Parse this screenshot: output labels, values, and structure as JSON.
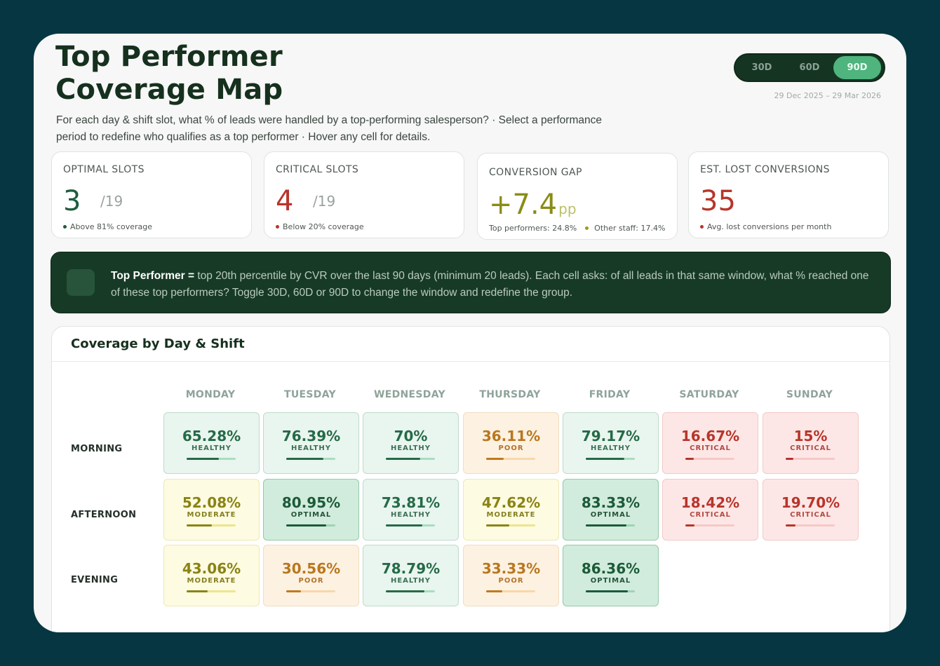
{
  "header": {
    "title_line1": "Top Performer",
    "title_line2": "Coverage Map",
    "subtitle_line1": "For each day & shift slot, what % of leads were handled by a top-performing salesperson? · Select a performance",
    "subtitle_line2": "period to redefine who qualifies as a top performer · Hover any cell for details.",
    "date_range": "29 Dec 2025 – 29 Mar 2026"
  },
  "period_toggle": {
    "options": [
      "30D",
      "60D",
      "90D"
    ],
    "selected": "90D"
  },
  "kpis": {
    "optimal": {
      "label": "OPTIMAL SLOTS",
      "value": "3",
      "denom": "/19",
      "note": "Above 81% coverage",
      "color": "#1f5c3d",
      "dot": "#1f5c3d"
    },
    "critical": {
      "label": "CRITICAL SLOTS",
      "value": "4",
      "denom": "/19",
      "note": "Below 20% coverage",
      "color": "#b7352b",
      "dot": "#b7352b"
    },
    "gap": {
      "label": "CONVERSION GAP",
      "value": "+7.4",
      "unit": "pp",
      "top_label": "Top performers:",
      "top_value": "24.8%",
      "other_label": "Other staff:",
      "other_value": "17.4%",
      "dot": "#a39a1a"
    },
    "lost": {
      "label": "EST. LOST CONVERSIONS",
      "value": "35",
      "note": "Avg. lost conversions per month",
      "color": "#b7352b",
      "dot": "#b7352b"
    }
  },
  "banner": {
    "bold": "Top Performer =",
    "text": " top 20th percentile by CVR over the last 90 days (minimum 20 leads). Each cell asks: of all leads in that same window, what % reached one of these top performers? Toggle 30D, 60D or 90D to change the window and redefine the group."
  },
  "heatmap": {
    "title": "Coverage by Day & Shift",
    "days": [
      "MONDAY",
      "TUESDAY",
      "WEDNESDAY",
      "THURSDAY",
      "FRIDAY",
      "SATURDAY",
      "SUNDAY"
    ],
    "shifts": [
      "MORNING",
      "AFTERNOON",
      "EVENING"
    ],
    "rows": [
      [
        {
          "value": "65.28%",
          "pct": 65.28,
          "status": "HEALTHY",
          "cls": "healthy"
        },
        {
          "value": "76.39%",
          "pct": 76.39,
          "status": "HEALTHY",
          "cls": "healthy"
        },
        {
          "value": "70%",
          "pct": 70,
          "status": "HEALTHY",
          "cls": "healthy"
        },
        {
          "value": "36.11%",
          "pct": 36.11,
          "status": "POOR",
          "cls": "poor"
        },
        {
          "value": "79.17%",
          "pct": 79.17,
          "status": "HEALTHY",
          "cls": "healthy"
        },
        {
          "value": "16.67%",
          "pct": 16.67,
          "status": "CRITICAL",
          "cls": "critical"
        },
        {
          "value": "15%",
          "pct": 15,
          "status": "CRITICAL",
          "cls": "critical"
        }
      ],
      [
        {
          "value": "52.08%",
          "pct": 52.08,
          "status": "MODERATE",
          "cls": "moderate"
        },
        {
          "value": "80.95%",
          "pct": 80.95,
          "status": "OPTIMAL",
          "cls": "optimal"
        },
        {
          "value": "73.81%",
          "pct": 73.81,
          "status": "HEALTHY",
          "cls": "healthy"
        },
        {
          "value": "47.62%",
          "pct": 47.62,
          "status": "MODERATE",
          "cls": "moderate"
        },
        {
          "value": "83.33%",
          "pct": 83.33,
          "status": "OPTIMAL",
          "cls": "optimal"
        },
        {
          "value": "18.42%",
          "pct": 18.42,
          "status": "CRITICAL",
          "cls": "critical"
        },
        {
          "value": "19.70%",
          "pct": 19.7,
          "status": "CRITICAL",
          "cls": "critical"
        }
      ],
      [
        {
          "value": "43.06%",
          "pct": 43.06,
          "status": "MODERATE",
          "cls": "moderate"
        },
        {
          "value": "30.56%",
          "pct": 30.56,
          "status": "POOR",
          "cls": "poor"
        },
        {
          "value": "78.79%",
          "pct": 78.79,
          "status": "HEALTHY",
          "cls": "healthy"
        },
        {
          "value": "33.33%",
          "pct": 33.33,
          "status": "POOR",
          "cls": "poor"
        },
        {
          "value": "86.36%",
          "pct": 86.36,
          "status": "OPTIMAL",
          "cls": "optimal"
        },
        null,
        null
      ]
    ]
  }
}
